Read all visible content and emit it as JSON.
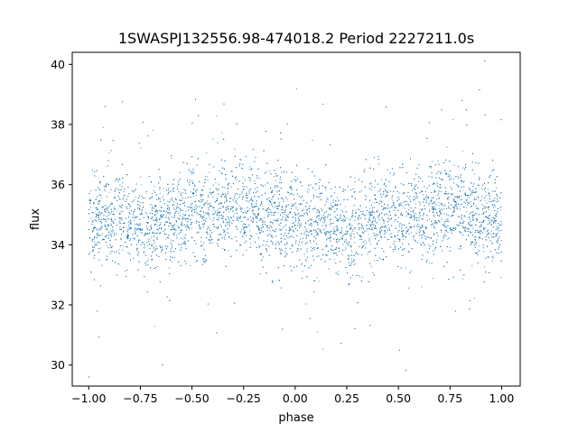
{
  "chart_data": {
    "type": "scatter",
    "title": "1SWASPJ132556.98-474018.2 Period 2227211.0s",
    "xlabel": "phase",
    "ylabel": "flux",
    "xlim": [
      -1.08,
      1.09
    ],
    "ylim": [
      29.3,
      40.4
    ],
    "x_ticks": [
      -1.0,
      -0.75,
      -0.5,
      -0.25,
      0.0,
      0.25,
      0.5,
      0.75,
      1.0
    ],
    "x_tick_labels": [
      "−1.00",
      "−0.75",
      "−0.50",
      "−0.25",
      "0.00",
      "0.25",
      "0.50",
      "0.75",
      "1.00"
    ],
    "y_ticks": [
      30,
      32,
      34,
      36,
      38,
      40
    ],
    "y_tick_labels": [
      "30",
      "32",
      "34",
      "36",
      "38",
      "40"
    ],
    "grid": false,
    "legend": "none",
    "series": [
      {
        "color": "#1f77b4",
        "marker": "point",
        "description_points": {
          "x": [
            -0.98,
            -0.95,
            -0.92,
            -0.88,
            -0.85,
            -0.8,
            -0.78,
            -0.74,
            -0.7,
            -0.68,
            -0.65,
            -0.6,
            -0.57,
            -0.53,
            -0.48,
            -0.45,
            -0.4,
            -0.37,
            -0.32,
            -0.27,
            -0.22,
            -0.18,
            -0.15,
            -0.1,
            -0.05,
            0.0,
            0.05,
            0.1,
            0.15,
            0.2,
            0.25,
            0.28,
            0.32,
            0.38,
            0.42,
            0.45,
            0.5,
            0.55,
            0.6,
            0.65,
            0.7,
            0.75,
            0.8,
            0.83,
            0.88,
            0.93,
            0.97,
            1.0
          ],
          "y": [
            34.8,
            35.0,
            34.6,
            35.1,
            34.9,
            34.7,
            34.8,
            34.5,
            34.6,
            34.8,
            35.0,
            34.7,
            34.9,
            35.0,
            35.1,
            34.9,
            35.0,
            35.2,
            35.1,
            35.3,
            35.2,
            35.0,
            34.9,
            35.0,
            34.8,
            34.9,
            34.7,
            34.8,
            34.6,
            34.5,
            34.4,
            34.5,
            34.7,
            34.8,
            34.9,
            35.0,
            34.9,
            35.0,
            34.8,
            35.1,
            35.2,
            35.2,
            35.3,
            35.1,
            35.0,
            34.9,
            34.8,
            34.7
          ]
        }
      }
    ]
  }
}
